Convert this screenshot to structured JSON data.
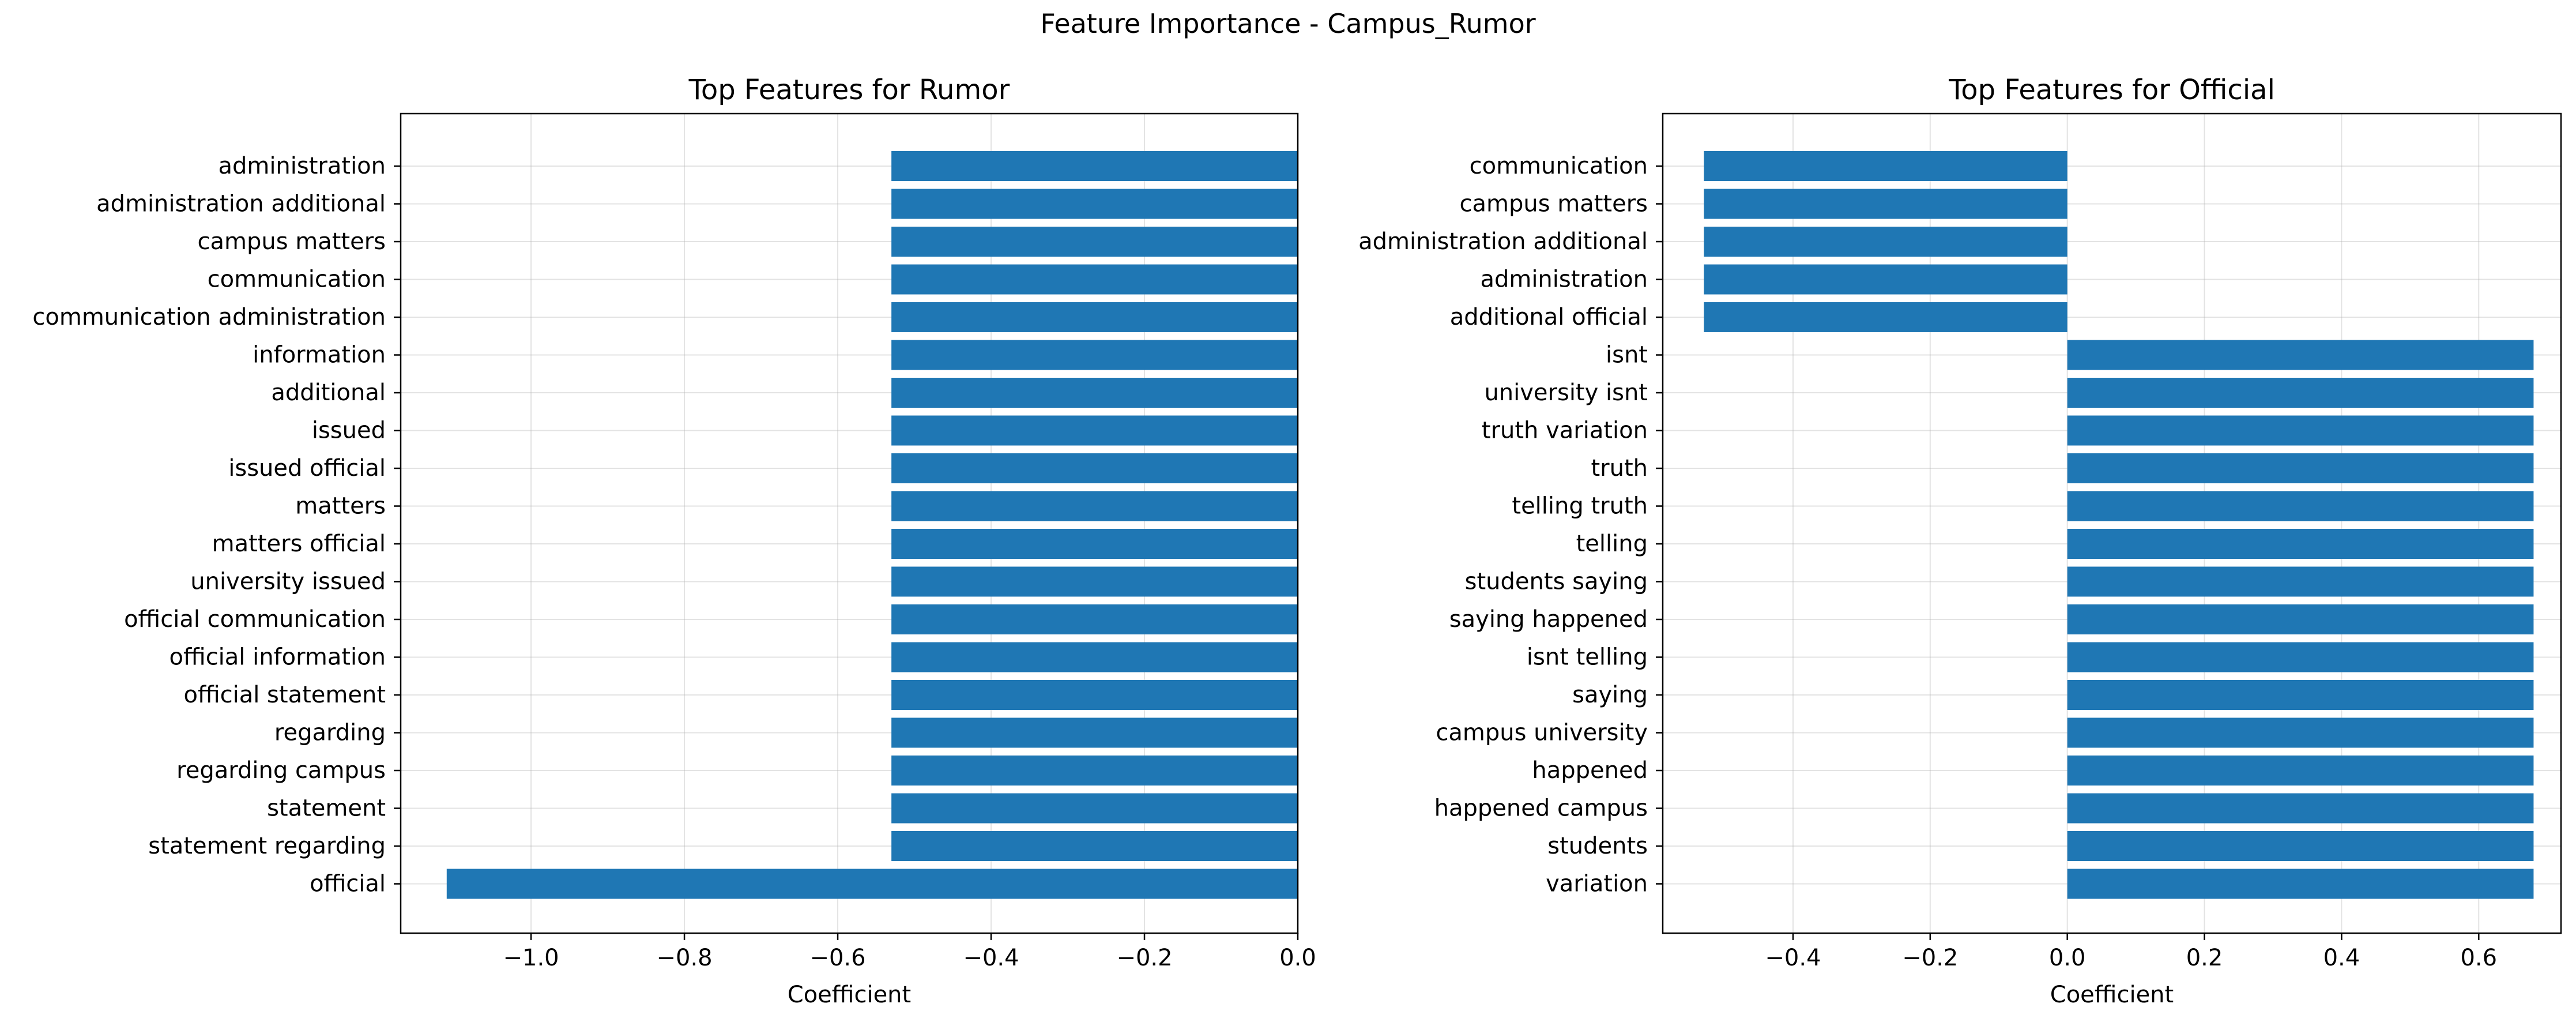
{
  "figure": {
    "title": "Feature Importance - Campus_Rumor"
  },
  "chart_data": [
    {
      "type": "bar",
      "orientation": "horizontal",
      "title": "Top Features for Rumor",
      "xlabel": "Coefficient",
      "ylabel": "",
      "xlim": [
        -1.17,
        0.0
      ],
      "xticks": [
        -1.0,
        -0.8,
        -0.6,
        -0.4,
        -0.2,
        0.0
      ],
      "xtick_labels": [
        "−1.0",
        "−0.8",
        "−0.6",
        "−0.4",
        "−0.2",
        "0.0"
      ],
      "grid": true,
      "bar_color": "#1f77b4",
      "categories": [
        "administration",
        "administration additional",
        "campus matters",
        "communication",
        "communication administration",
        "information",
        "additional",
        "issued",
        "issued official",
        "matters",
        "matters official",
        "university issued",
        "official communication",
        "official information",
        "official statement",
        "regarding",
        "regarding campus",
        "statement",
        "statement regarding",
        "official"
      ],
      "values": [
        -0.53,
        -0.53,
        -0.53,
        -0.53,
        -0.53,
        -0.53,
        -0.53,
        -0.53,
        -0.53,
        -0.53,
        -0.53,
        -0.53,
        -0.53,
        -0.53,
        -0.53,
        -0.53,
        -0.53,
        -0.53,
        -0.53,
        -1.11
      ]
    },
    {
      "type": "bar",
      "orientation": "horizontal",
      "title": "Top Features for Official",
      "xlabel": "Coefficient",
      "ylabel": "",
      "xlim": [
        -0.59,
        0.72
      ],
      "xticks": [
        -0.4,
        -0.2,
        0.0,
        0.2,
        0.4,
        0.6
      ],
      "xtick_labels": [
        "−0.4",
        "−0.2",
        "0.0",
        "0.2",
        "0.4",
        "0.6"
      ],
      "grid": true,
      "bar_color": "#1f77b4",
      "categories": [
        "communication",
        "campus matters",
        "administration additional",
        "administration",
        "additional official",
        "isnt",
        "university isnt",
        "truth variation",
        "truth",
        "telling truth",
        "telling",
        "students saying",
        "saying happened",
        "isnt telling",
        "saying",
        "campus university",
        "happened",
        "happened campus",
        "students",
        "variation"
      ],
      "values": [
        -0.53,
        -0.53,
        -0.53,
        -0.53,
        -0.53,
        0.68,
        0.68,
        0.68,
        0.68,
        0.68,
        0.68,
        0.68,
        0.68,
        0.68,
        0.68,
        0.68,
        0.68,
        0.68,
        0.68,
        0.68
      ]
    }
  ]
}
